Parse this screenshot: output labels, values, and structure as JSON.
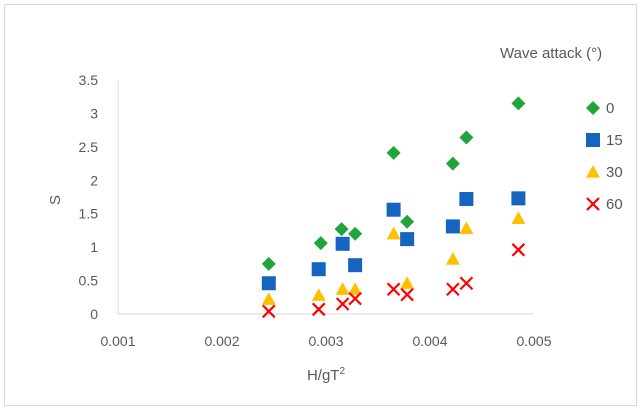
{
  "chart_data": {
    "type": "scatter",
    "title": "",
    "xlabel": "H/gT",
    "xlabel_sup": "2",
    "ylabel": "S",
    "xlim": [
      0.001,
      0.005
    ],
    "ylim": [
      0,
      3.5
    ],
    "x_ticks": [
      "0.001",
      "0.002",
      "0.003",
      "0.004",
      "0.005"
    ],
    "y_ticks": [
      "0",
      "0.5",
      "1",
      "1.5",
      "2",
      "2.5",
      "3",
      "3.5"
    ],
    "grid": false,
    "legend_title": "Wave attack (°)",
    "legend_position": "right",
    "series": [
      {
        "name": "0",
        "marker": "diamond",
        "color": "#1fa53a",
        "points": [
          [
            0.00245,
            0.75
          ],
          [
            0.00295,
            1.06
          ],
          [
            0.00315,
            1.27
          ],
          [
            0.00328,
            1.2
          ],
          [
            0.00365,
            2.41
          ],
          [
            0.00378,
            1.38
          ],
          [
            0.00422,
            2.25
          ],
          [
            0.00435,
            2.64
          ],
          [
            0.00485,
            3.15
          ]
        ]
      },
      {
        "name": "15",
        "marker": "square",
        "color": "#1565c0",
        "points": [
          [
            0.00245,
            0.46
          ],
          [
            0.00293,
            0.67
          ],
          [
            0.00316,
            1.05
          ],
          [
            0.00328,
            0.73
          ],
          [
            0.00365,
            1.56
          ],
          [
            0.00378,
            1.12
          ],
          [
            0.00422,
            1.31
          ],
          [
            0.00435,
            1.72
          ],
          [
            0.00485,
            1.73
          ]
        ]
      },
      {
        "name": "30",
        "marker": "triangle",
        "color": "#ffc000",
        "points": [
          [
            0.00245,
            0.22
          ],
          [
            0.00293,
            0.28
          ],
          [
            0.00316,
            0.37
          ],
          [
            0.00328,
            0.37
          ],
          [
            0.00365,
            1.2
          ],
          [
            0.00378,
            0.46
          ],
          [
            0.00422,
            0.82
          ],
          [
            0.00435,
            1.28
          ],
          [
            0.00485,
            1.43
          ]
        ]
      },
      {
        "name": "60",
        "marker": "x",
        "color": "#ff0000",
        "points": [
          [
            0.00245,
            0.04
          ],
          [
            0.00293,
            0.07
          ],
          [
            0.00316,
            0.15
          ],
          [
            0.00328,
            0.23
          ],
          [
            0.00365,
            0.37
          ],
          [
            0.00378,
            0.29
          ],
          [
            0.00422,
            0.37
          ],
          [
            0.00435,
            0.46
          ],
          [
            0.00485,
            0.96
          ]
        ]
      }
    ]
  }
}
